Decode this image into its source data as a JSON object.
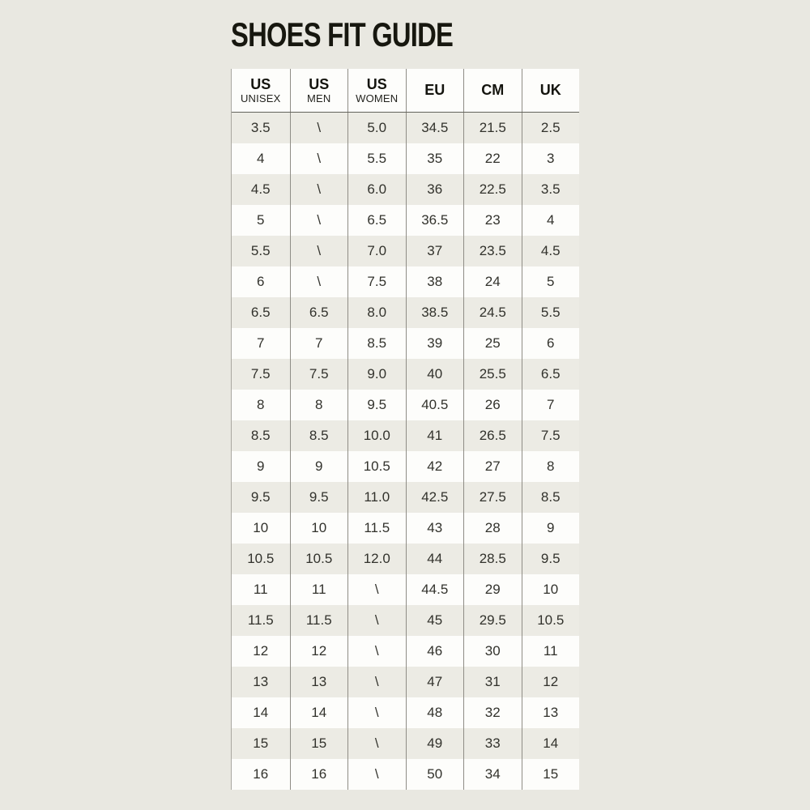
{
  "title": "SHOES FIT GUIDE",
  "colors": {
    "page_background": "#e9e8e1",
    "row_white": "#fdfdfb",
    "row_beige": "#ecebe4",
    "column_separator": "#8f8d86",
    "header_underline": "#63635c",
    "text": "#17170f"
  },
  "table": {
    "header": {
      "columns": [
        {
          "main": "US",
          "sub": "UNISEX"
        },
        {
          "main": "US",
          "sub": "MEN"
        },
        {
          "main": "US",
          "sub": "WOMEN"
        },
        {
          "main": "EU"
        },
        {
          "main": "CM"
        },
        {
          "main": "UK"
        }
      ]
    },
    "rows": [
      [
        "3.5",
        "\\",
        "5.0",
        "34.5",
        "21.5",
        "2.5"
      ],
      [
        "4",
        "\\",
        "5.5",
        "35",
        "22",
        "3"
      ],
      [
        "4.5",
        "\\",
        "6.0",
        "36",
        "22.5",
        "3.5"
      ],
      [
        "5",
        "\\",
        "6.5",
        "36.5",
        "23",
        "4"
      ],
      [
        "5.5",
        "\\",
        "7.0",
        "37",
        "23.5",
        "4.5"
      ],
      [
        "6",
        "\\",
        "7.5",
        "38",
        "24",
        "5"
      ],
      [
        "6.5",
        "6.5",
        "8.0",
        "38.5",
        "24.5",
        "5.5"
      ],
      [
        "7",
        "7",
        "8.5",
        "39",
        "25",
        "6"
      ],
      [
        "7.5",
        "7.5",
        "9.0",
        "40",
        "25.5",
        "6.5"
      ],
      [
        "8",
        "8",
        "9.5",
        "40.5",
        "26",
        "7"
      ],
      [
        "8.5",
        "8.5",
        "10.0",
        "41",
        "26.5",
        "7.5"
      ],
      [
        "9",
        "9",
        "10.5",
        "42",
        "27",
        "8"
      ],
      [
        "9.5",
        "9.5",
        "11.0",
        "42.5",
        "27.5",
        "8.5"
      ],
      [
        "10",
        "10",
        "11.5",
        "43",
        "28",
        "9"
      ],
      [
        "10.5",
        "10.5",
        "12.0",
        "44",
        "28.5",
        "9.5"
      ],
      [
        "11",
        "11",
        "\\",
        "44.5",
        "29",
        "10"
      ],
      [
        "11.5",
        "11.5",
        "\\",
        "45",
        "29.5",
        "10.5"
      ],
      [
        "12",
        "12",
        "\\",
        "46",
        "30",
        "11"
      ],
      [
        "13",
        "13",
        "\\",
        "47",
        "31",
        "12"
      ],
      [
        "14",
        "14",
        "\\",
        "48",
        "32",
        "13"
      ],
      [
        "15",
        "15",
        "\\",
        "49",
        "33",
        "14"
      ],
      [
        "16",
        "16",
        "\\",
        "50",
        "34",
        "15"
      ]
    ]
  }
}
